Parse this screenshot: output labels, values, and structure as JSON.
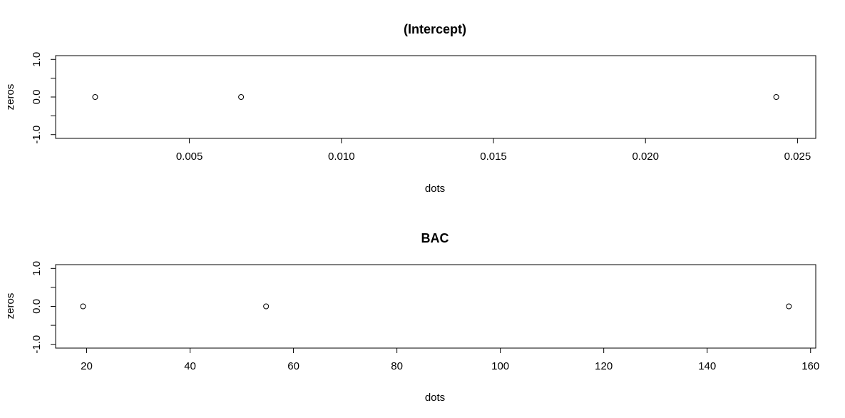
{
  "chart_data": [
    {
      "type": "scatter",
      "title": "(Intercept)",
      "xlabel": "dots",
      "ylabel": "zeros",
      "x": [
        0.0019,
        0.0067,
        0.0243
      ],
      "y": [
        0,
        0,
        0
      ],
      "xlim": [
        0.0006,
        0.0256
      ],
      "ylim": [
        -1.1,
        1.1
      ],
      "xticks": [
        0.005,
        0.01,
        0.015,
        0.02,
        0.025
      ],
      "xtick_labels": [
        "0.005",
        "0.010",
        "0.015",
        "0.020",
        "0.025"
      ],
      "yticks": [
        -1.0,
        -0.5,
        0.0,
        0.5,
        1.0
      ],
      "ytick_labels": [
        "-1.0",
        "",
        "0.0",
        "",
        "1.0"
      ],
      "grid": false,
      "marker": "open-circle"
    },
    {
      "type": "scatter",
      "title": "BAC",
      "xlabel": "dots",
      "ylabel": "zeros",
      "x": [
        19.3,
        54.7,
        155.8
      ],
      "y": [
        0,
        0,
        0
      ],
      "xlim": [
        14.0,
        161.0
      ],
      "ylim": [
        -1.1,
        1.1
      ],
      "xticks": [
        20,
        40,
        60,
        80,
        100,
        120,
        140,
        160
      ],
      "xtick_labels": [
        "20",
        "40",
        "60",
        "80",
        "100",
        "120",
        "140",
        "160"
      ],
      "yticks": [
        -1.0,
        -0.5,
        0.0,
        0.5,
        1.0
      ],
      "ytick_labels": [
        "-1.0",
        "",
        "0.0",
        "",
        "1.0"
      ],
      "grid": false,
      "marker": "open-circle"
    }
  ]
}
